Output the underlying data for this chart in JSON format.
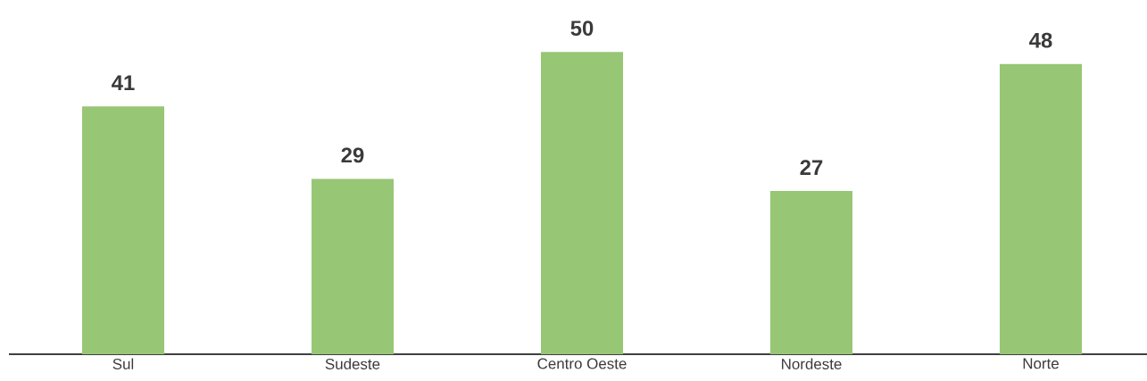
{
  "chart_data": {
    "type": "bar",
    "categories": [
      "Sul",
      "Sudeste",
      "Centro Oeste",
      "Nordeste",
      "Norte"
    ],
    "values": [
      41,
      29,
      50,
      27,
      48
    ],
    "color": "#97c675",
    "data_labels": true
  }
}
